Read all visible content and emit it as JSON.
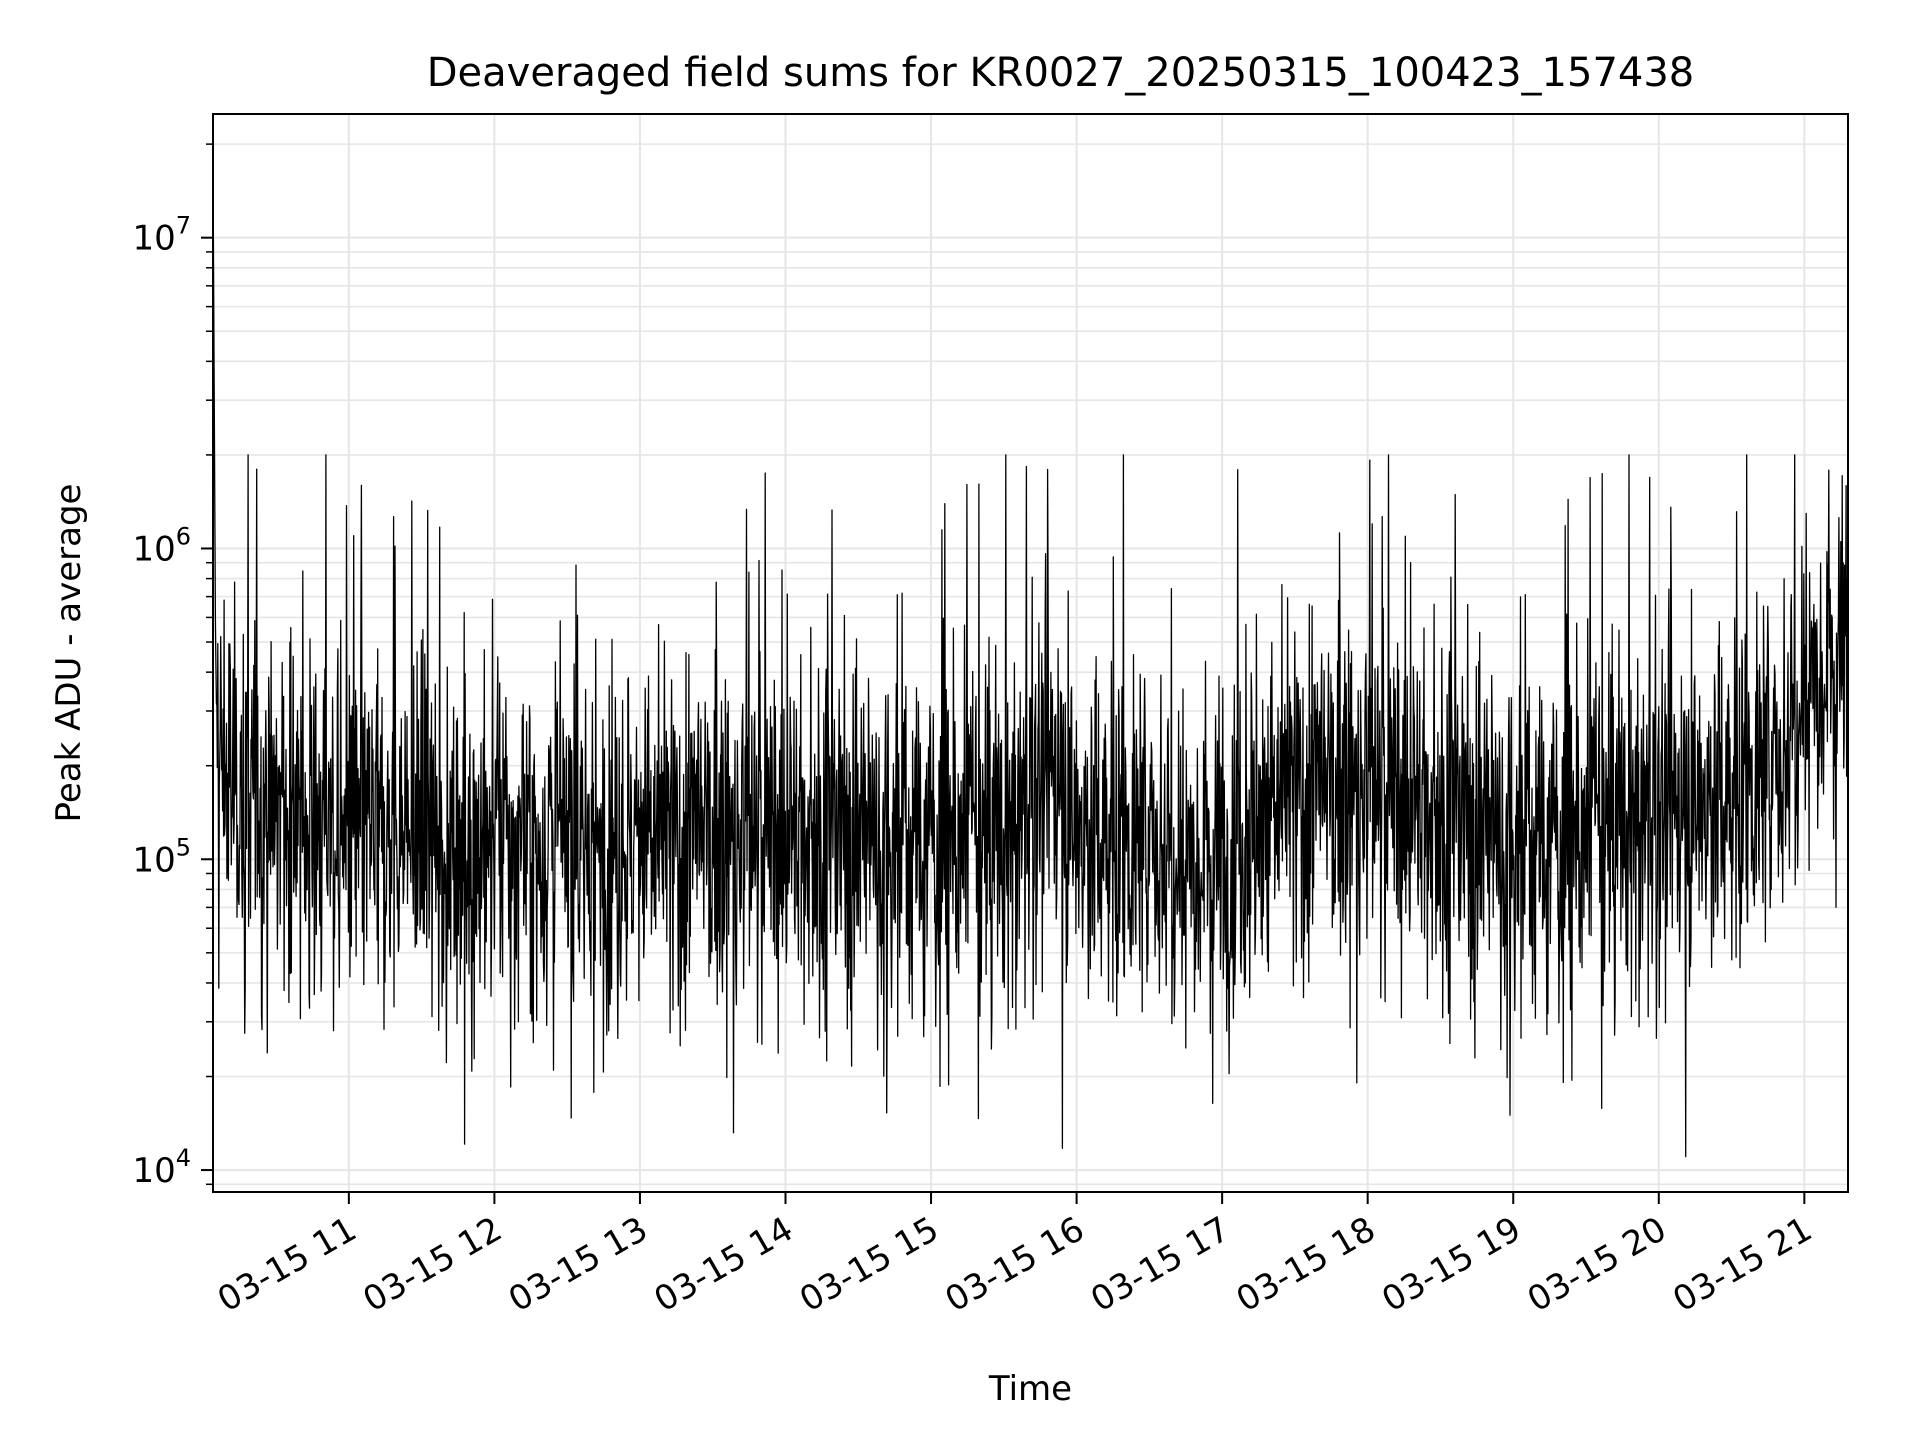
{
  "chart_data": {
    "type": "line",
    "title": "Deaveraged field sums for KR0027_20250315_100423_157438",
    "xlabel": "Time",
    "ylabel": "Peak ADU - average",
    "yscale": "log",
    "ylim": [
      8500,
      25000000
    ],
    "xlim": [
      "2025-03-15 10:04",
      "2025-03-15 21:18"
    ],
    "x_ticks": [
      {
        "time": "2025-03-15 11:00",
        "label": "03-15 11"
      },
      {
        "time": "2025-03-15 12:00",
        "label": "03-15 12"
      },
      {
        "time": "2025-03-15 13:00",
        "label": "03-15 13"
      },
      {
        "time": "2025-03-15 14:00",
        "label": "03-15 14"
      },
      {
        "time": "2025-03-15 15:00",
        "label": "03-15 15"
      },
      {
        "time": "2025-03-15 16:00",
        "label": "03-15 16"
      },
      {
        "time": "2025-03-15 17:00",
        "label": "03-15 17"
      },
      {
        "time": "2025-03-15 18:00",
        "label": "03-15 18"
      },
      {
        "time": "2025-03-15 19:00",
        "label": "03-15 19"
      },
      {
        "time": "2025-03-15 20:00",
        "label": "03-15 20"
      },
      {
        "time": "2025-03-15 21:00",
        "label": "03-15 21"
      }
    ],
    "y_ticks": [
      {
        "value": 10000,
        "base": "10",
        "exp": "4"
      },
      {
        "value": 100000,
        "base": "10",
        "exp": "5"
      },
      {
        "value": 1000000,
        "base": "10",
        "exp": "6"
      },
      {
        "value": 10000000,
        "base": "10",
        "exp": "7"
      }
    ],
    "grid": true,
    "line_color": "#000000",
    "grid_color": "#e6e6e6",
    "series": [
      {
        "points": [
          {
            "x": "2025-03-15 10:04",
            "y": 17500000
          },
          {
            "x": "2025-03-15 10:05",
            "y": 250000
          },
          {
            "x": "2025-03-15 10:10",
            "y": 180000
          },
          {
            "x": "2025-03-15 10:30",
            "y": 140000
          },
          {
            "x": "2025-03-15 11:00",
            "y": 120000
          },
          {
            "x": "2025-03-15 11:30",
            "y": 115000
          },
          {
            "x": "2025-03-15 12:00",
            "y": 110000
          },
          {
            "x": "2025-03-15 12:30",
            "y": 110000
          },
          {
            "x": "2025-03-15 13:00",
            "y": 110000
          },
          {
            "x": "2025-03-15 13:30",
            "y": 115000
          },
          {
            "x": "2025-03-15 14:00",
            "y": 120000
          },
          {
            "x": "2025-03-15 14:30",
            "y": 120000
          },
          {
            "x": "2025-03-15 15:00",
            "y": 115000
          },
          {
            "x": "2025-03-15 15:30",
            "y": 115000
          },
          {
            "x": "2025-03-15 15:50",
            "y": 200000
          },
          {
            "x": "2025-03-15 16:00",
            "y": 125000
          },
          {
            "x": "2025-03-15 16:30",
            "y": 110000
          },
          {
            "x": "2025-03-15 17:00",
            "y": 110000
          },
          {
            "x": "2025-03-15 17:30",
            "y": 160000
          },
          {
            "x": "2025-03-15 18:00",
            "y": 170000
          },
          {
            "x": "2025-03-15 18:30",
            "y": 140000
          },
          {
            "x": "2025-03-15 19:00",
            "y": 115000
          },
          {
            "x": "2025-03-15 19:30",
            "y": 120000
          },
          {
            "x": "2025-03-15 20:00",
            "y": 140000
          },
          {
            "x": "2025-03-15 20:30",
            "y": 160000
          },
          {
            "x": "2025-03-15 20:50",
            "y": 200000
          },
          {
            "x": "2025-03-15 21:00",
            "y": 400000
          },
          {
            "x": "2025-03-15 21:18",
            "y": 500000
          }
        ]
      }
    ]
  }
}
